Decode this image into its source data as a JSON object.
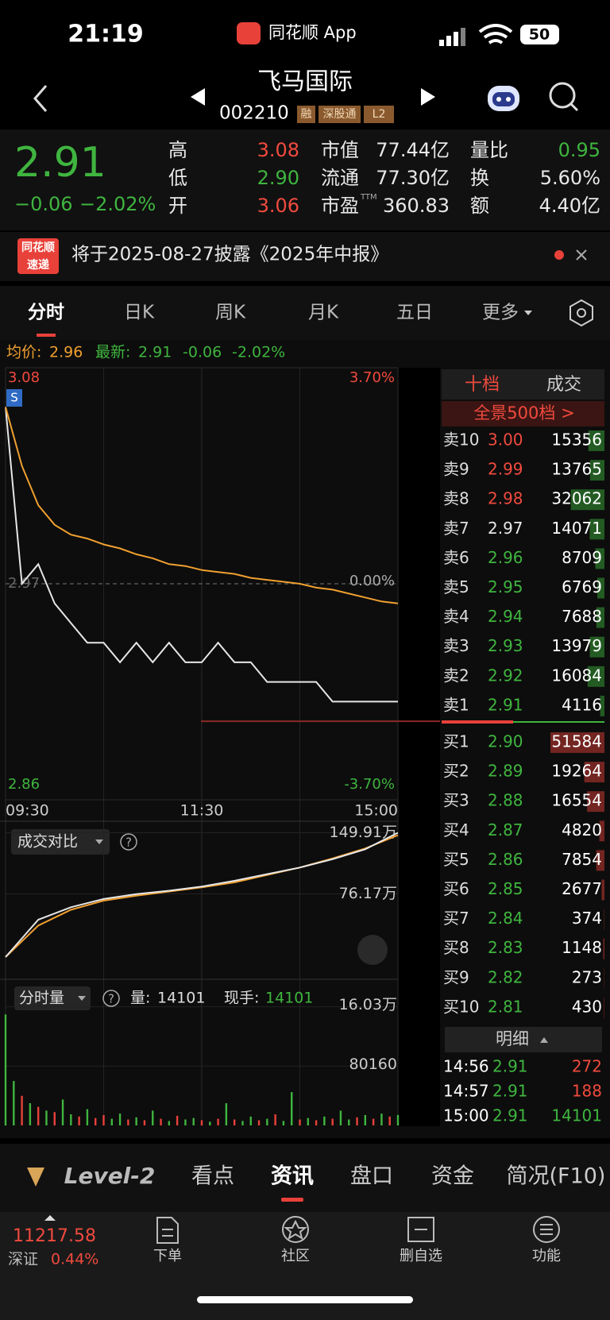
{
  "status": {
    "time": "21:19",
    "app": "同花顺 App",
    "battery": "50"
  },
  "header": {
    "name": "飞马国际",
    "code": "002210",
    "tags": [
      "融",
      "深股通",
      "L2"
    ]
  },
  "quote": {
    "price": "2.91",
    "change": "−0.06",
    "change_pct": "−2.02%",
    "ttm": "TTM",
    "stats": [
      {
        "label": "高",
        "value": "3.08",
        "color": "#f04a3e"
      },
      {
        "label": "低",
        "value": "2.90",
        "color": "#3fb53f"
      },
      {
        "label": "开",
        "value": "3.06",
        "color": "#f04a3e"
      },
      {
        "label": "市值",
        "value": "77.44亿",
        "color": "#e8e8e8"
      },
      {
        "label": "流通",
        "value": "77.30亿",
        "color": "#e8e8e8"
      },
      {
        "label": "市盈",
        "value": "360.83",
        "color": "#e8e8e8"
      },
      {
        "label": "量比",
        "value": "0.95",
        "color": "#3fb53f"
      },
      {
        "label": "换",
        "value": "5.60%",
        "color": "#e8e8e8"
      },
      {
        "label": "额",
        "value": "4.40亿",
        "color": "#e8e8e8"
      }
    ]
  },
  "notice": {
    "badge": [
      "同花顺",
      "速递"
    ],
    "text": "将于2025-08-27披露《2025年中报》"
  },
  "tabs": [
    "分时",
    "日K",
    "周K",
    "月K",
    "五日",
    "更多"
  ],
  "intraday": {
    "type": "line",
    "marker": "S",
    "info": {
      "avg_label": "均价:",
      "avg": "2.96",
      "latest_label": "最新:",
      "latest": "2.91",
      "change": "-0.06",
      "pct": "-2.02%"
    },
    "xlim": [
      0,
      240
    ],
    "xticks": [
      {
        "value": 0,
        "label": "09:30"
      },
      {
        "value": 120,
        "label": "11:30"
      },
      {
        "value": 240,
        "label": "15:00"
      }
    ],
    "ylim": [
      2.86,
      3.08
    ],
    "yticks": [
      3.08,
      2.97,
      2.86
    ],
    "y2lim": [
      -3.7,
      3.7
    ],
    "y2ticks": [
      {
        "value": 3.7,
        "label": "3.70%"
      },
      {
        "value": 0,
        "label": "0.00%"
      },
      {
        "value": -3.7,
        "label": "-3.70%"
      }
    ],
    "x": [
      0,
      10,
      20,
      30,
      40,
      50,
      60,
      70,
      80,
      90,
      100,
      110,
      120,
      130,
      140,
      150,
      160,
      170,
      180,
      190,
      200,
      210,
      220,
      230,
      240
    ],
    "series": [
      {
        "name": "price",
        "color": "#e6e6e6",
        "values": [
          3.06,
          2.97,
          2.98,
          2.96,
          2.95,
          2.94,
          2.94,
          2.93,
          2.94,
          2.93,
          2.94,
          2.93,
          2.93,
          2.94,
          2.93,
          2.93,
          2.92,
          2.92,
          2.92,
          2.92,
          2.91,
          2.91,
          2.91,
          2.91,
          2.91
        ]
      },
      {
        "name": "avg",
        "color": "#f0a030",
        "values": [
          3.06,
          3.03,
          3.01,
          3.0,
          2.995,
          2.993,
          2.99,
          2.988,
          2.985,
          2.983,
          2.98,
          2.979,
          2.977,
          2.976,
          2.975,
          2.973,
          2.972,
          2.971,
          2.97,
          2.968,
          2.967,
          2.965,
          2.963,
          2.961,
          2.96
        ]
      }
    ]
  },
  "compare": {
    "title": "成交对比",
    "help": "?",
    "ylim": [
      -24,
      160
    ],
    "yticks": [
      {
        "value": 149.91,
        "label": "149.91万"
      },
      {
        "value": 76.17,
        "label": "76.17万"
      }
    ],
    "x": [
      0,
      20,
      40,
      60,
      80,
      100,
      120,
      140,
      160,
      180,
      200,
      220,
      240
    ],
    "series": [
      {
        "name": "today",
        "color": "#e6e6e6",
        "values": [
          0,
          45,
          60,
          70,
          76,
          80,
          85,
          92,
          100,
          108,
          118,
          130,
          149.91
        ]
      },
      {
        "name": "previous",
        "color": "#f0a030",
        "values": [
          0,
          38,
          57,
          68,
          74,
          79,
          84,
          90,
          99,
          108,
          119,
          131,
          147
        ]
      }
    ]
  },
  "volume": {
    "title": "分时量",
    "help": "?",
    "qty_label": "量:",
    "qty": 14101,
    "hand_label": "现手:",
    "hand": 14101,
    "ylim": [
      0,
      190000
    ],
    "yticks": [
      {
        "value": 160300,
        "label": "16.03万"
      },
      80160
    ],
    "x": [
      0,
      5,
      10,
      15,
      20,
      25,
      30,
      35,
      40,
      45,
      50,
      55,
      60,
      65,
      70,
      75,
      80,
      85,
      90,
      95,
      100,
      105,
      110,
      115,
      120,
      125,
      130,
      135,
      140,
      145,
      150,
      155,
      160,
      165,
      170,
      175,
      180,
      185,
      190,
      195,
      200,
      205,
      210,
      215,
      220,
      225,
      230,
      235,
      240
    ],
    "values": [
      150000,
      60000,
      40000,
      30000,
      25000,
      20000,
      18000,
      35000,
      15000,
      12000,
      22000,
      10000,
      14000,
      9000,
      16000,
      8000,
      11000,
      7000,
      20000,
      9000,
      6000,
      13000,
      8000,
      10000,
      7000,
      5000,
      9000,
      30000,
      8000,
      6000,
      12000,
      7000,
      9000,
      15000,
      6000,
      45000,
      8000,
      10000,
      7000,
      12000,
      9000,
      20000,
      8000,
      11000,
      14000,
      9000,
      16000,
      12000,
      14101
    ],
    "colors": [
      "#3fb53f",
      "#3fb53f",
      "#e8413a",
      "#3fb53f",
      "#e8413a",
      "#3fb53f",
      "#e8413a",
      "#3fb53f",
      "#3fb53f",
      "#e8413a",
      "#3fb53f",
      "#e8413a",
      "#e8413a",
      "#3fb53f",
      "#3fb53f",
      "#e8413a",
      "#3fb53f",
      "#e8413a",
      "#3fb53f",
      "#e8413a",
      "#3fb53f",
      "#e8413a",
      "#3fb53f",
      "#3fb53f",
      "#e8413a",
      "#3fb53f",
      "#e8413a",
      "#3fb53f",
      "#e8413a",
      "#3fb53f",
      "#3fb53f",
      "#e8413a",
      "#3fb53f",
      "#e8413a",
      "#3fb53f",
      "#3fb53f",
      "#e8413a",
      "#3fb53f",
      "#e8413a",
      "#3fb53f",
      "#e8413a",
      "#3fb53f",
      "#3fb53f",
      "#e8413a",
      "#3fb53f",
      "#e8413a",
      "#3fb53f",
      "#e8413a",
      "#3fb53f"
    ]
  },
  "order_book": {
    "tabs": [
      "十档",
      "成交"
    ],
    "panorama": "全景500档 >",
    "asks": [
      {
        "label": "卖10",
        "price": "3.00",
        "volume": 15356
      },
      {
        "label": "卖9",
        "price": "2.99",
        "volume": 13765
      },
      {
        "label": "卖8",
        "price": "2.98",
        "volume": 32062
      },
      {
        "label": "卖7",
        "price": "2.97",
        "volume": 14071
      },
      {
        "label": "卖6",
        "price": "2.96",
        "volume": 8709
      },
      {
        "label": "卖5",
        "price": "2.95",
        "volume": 6769
      },
      {
        "label": "卖4",
        "price": "2.94",
        "volume": 7688
      },
      {
        "label": "卖3",
        "price": "2.93",
        "volume": 13979
      },
      {
        "label": "卖2",
        "price": "2.92",
        "volume": 16084
      },
      {
        "label": "卖1",
        "price": "2.91",
        "volume": 4116
      }
    ],
    "bids": [
      {
        "label": "买1",
        "price": "2.90",
        "volume": 51584
      },
      {
        "label": "买2",
        "price": "2.89",
        "volume": 19264
      },
      {
        "label": "买3",
        "price": "2.88",
        "volume": 16554
      },
      {
        "label": "买4",
        "price": "2.87",
        "volume": 4820
      },
      {
        "label": "买5",
        "price": "2.86",
        "volume": 7854
      },
      {
        "label": "买6",
        "price": "2.85",
        "volume": 2677
      },
      {
        "label": "买7",
        "price": "2.84",
        "volume": 374
      },
      {
        "label": "买8",
        "price": "2.83",
        "volume": 1148
      },
      {
        "label": "买9",
        "price": "2.82",
        "volume": 273
      },
      {
        "label": "买10",
        "price": "2.81",
        "volume": 430
      }
    ],
    "detail_title": "明细",
    "trades": [
      {
        "time": "14:56",
        "price": "2.91",
        "volume": 272,
        "color": "#f04a3e"
      },
      {
        "time": "14:57",
        "price": "2.91",
        "volume": 188,
        "color": "#f04a3e"
      },
      {
        "time": "15:00",
        "price": "2.91",
        "volume": 14101,
        "color": "#3fb53f"
      }
    ]
  },
  "bottom_tabs": [
    "Level-2",
    "看点",
    "资讯",
    "盘口",
    "资金",
    "简况(F10)"
  ],
  "nav": {
    "index_value": "11217.58",
    "index_name": "深证",
    "index_pct": "0.44%",
    "items": [
      "下单",
      "社区",
      "删自选",
      "功能"
    ]
  }
}
